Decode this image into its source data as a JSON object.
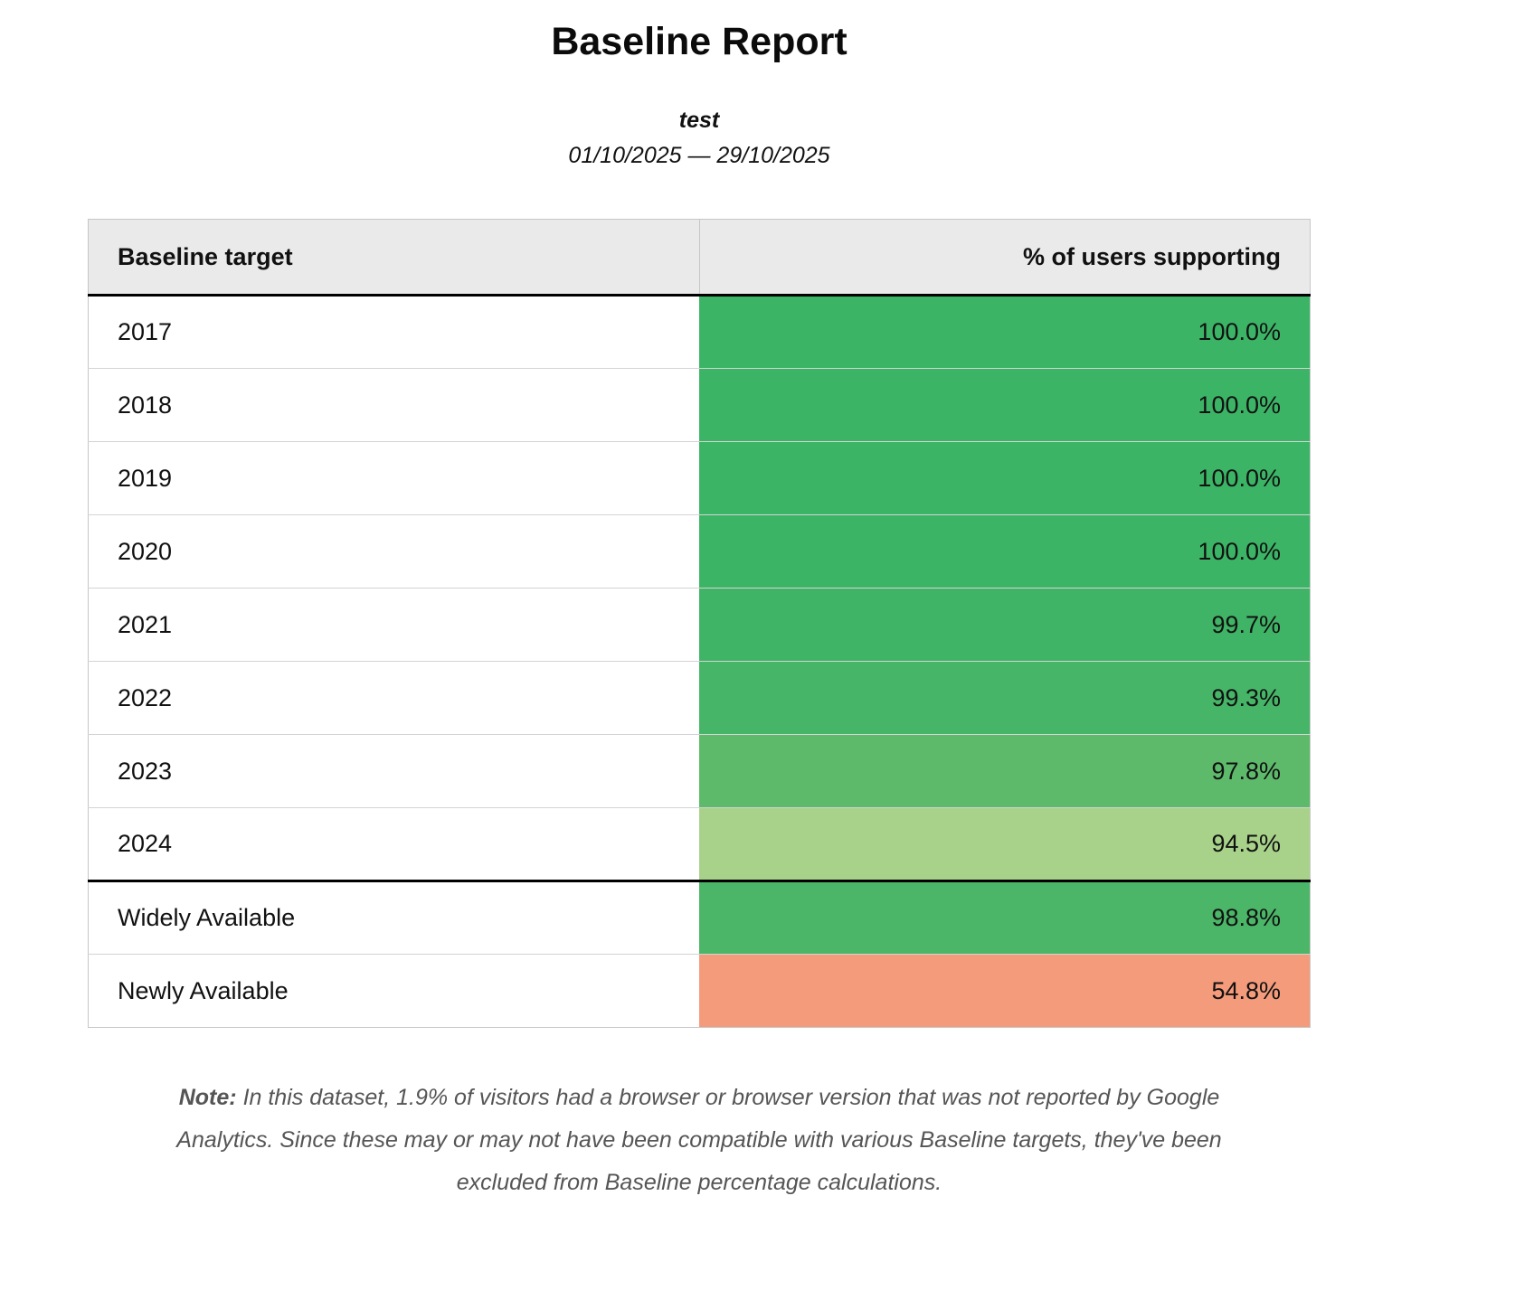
{
  "report": {
    "title": "Baseline Report",
    "subtitle": "test",
    "date_range": "01/10/2025 — 29/10/2025"
  },
  "table": {
    "col_target": "Baseline target",
    "col_percent": "% of users supporting",
    "rows": [
      {
        "label": "2017",
        "value": "100.0%",
        "color": "#3cb466",
        "section": "years"
      },
      {
        "label": "2018",
        "value": "100.0%",
        "color": "#3cb466",
        "section": "years"
      },
      {
        "label": "2019",
        "value": "100.0%",
        "color": "#3cb466",
        "section": "years"
      },
      {
        "label": "2020",
        "value": "100.0%",
        "color": "#3cb466",
        "section": "years"
      },
      {
        "label": "2021",
        "value": "99.7%",
        "color": "#40b466",
        "section": "years"
      },
      {
        "label": "2022",
        "value": "99.3%",
        "color": "#46b567",
        "section": "years"
      },
      {
        "label": "2023",
        "value": "97.8%",
        "color": "#5eba6b",
        "section": "years"
      },
      {
        "label": "2024",
        "value": "94.5%",
        "color": "#a8d28a",
        "section": "years"
      },
      {
        "label": "Widely Available",
        "value": "98.8%",
        "color": "#4bb568",
        "section": "baseline"
      },
      {
        "label": "Newly Available",
        "value": "54.8%",
        "color": "#f49b7c",
        "section": "baseline"
      }
    ]
  },
  "note": {
    "label": "Note:",
    "text": "In this dataset, 1.9% of visitors had a browser or browser version that was not reported by Google Analytics. Since these may or may not have been compatible with various Baseline targets, they've been excluded from Baseline percentage calculations."
  },
  "chart_data": {
    "type": "table",
    "title": "Baseline Report",
    "subtitle": "test",
    "date_range": "01/10/2025 — 29/10/2025",
    "columns": [
      "Baseline target",
      "% of users supporting"
    ],
    "categories": [
      "2017",
      "2018",
      "2019",
      "2020",
      "2021",
      "2022",
      "2023",
      "2024",
      "Widely Available",
      "Newly Available"
    ],
    "values": [
      100.0,
      100.0,
      100.0,
      100.0,
      99.7,
      99.3,
      97.8,
      94.5,
      98.8,
      54.8
    ],
    "value_unit": "%",
    "cell_colors": [
      "#3cb466",
      "#3cb466",
      "#3cb466",
      "#3cb466",
      "#40b466",
      "#46b567",
      "#5eba6b",
      "#a8d28a",
      "#4bb568",
      "#f49b7c"
    ]
  }
}
